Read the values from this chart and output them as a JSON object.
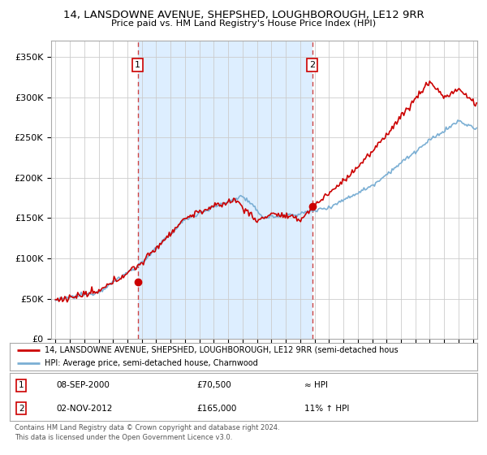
{
  "title": "14, LANSDOWNE AVENUE, SHEPSHED, LOUGHBOROUGH, LE12 9RR",
  "subtitle": "Price paid vs. HM Land Registry's House Price Index (HPI)",
  "x_start_year": 1995,
  "x_end_year": 2024,
  "ylim": [
    0,
    370000
  ],
  "yticks": [
    0,
    50000,
    100000,
    150000,
    200000,
    250000,
    300000,
    350000
  ],
  "ytick_labels": [
    "£0",
    "£50K",
    "£100K",
    "£150K",
    "£200K",
    "£250K",
    "£300K",
    "£350K"
  ],
  "sale1_date": 2000.72,
  "sale1_price": 70500,
  "sale1_label": "1",
  "sale2_date": 2012.84,
  "sale2_price": 165000,
  "sale2_label": "2",
  "red_line_color": "#cc0000",
  "blue_line_color": "#7bafd4",
  "vline_color": "#cc4444",
  "shaded_color": "#ddeeff",
  "marker_color": "#cc0000",
  "grid_color": "#cccccc",
  "background_color": "#ffffff",
  "legend_line1": "14, LANSDOWNE AVENUE, SHEPSHED, LOUGHBOROUGH, LE12 9RR (semi-detached hous",
  "legend_line2": "HPI: Average price, semi-detached house, Charnwood",
  "annotation1_date": "08-SEP-2000",
  "annotation1_price": "£70,500",
  "annotation1_rel": "≈ HPI",
  "annotation2_date": "02-NOV-2012",
  "annotation2_price": "£165,000",
  "annotation2_rel": "11% ↑ HPI",
  "footnote": "Contains HM Land Registry data © Crown copyright and database right 2024.\nThis data is licensed under the Open Government Licence v3.0."
}
